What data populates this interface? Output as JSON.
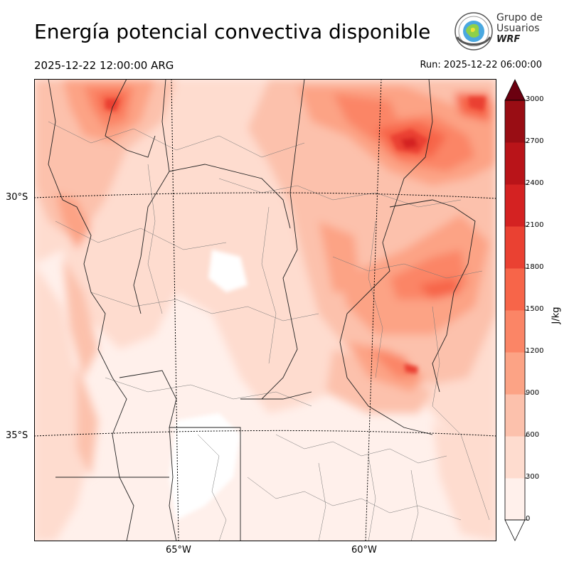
{
  "title": "Energía potencial convectiva disponible",
  "valid_time": "2025-12-22 12:00:00 ARG",
  "run_time": "Run: 2025-12-22 06:00:00",
  "logo": {
    "line1": "Grupo de",
    "line2": "Usuarios",
    "line3": "WRF",
    "icon": "globe-seal-icon"
  },
  "map": {
    "lat_labels": [
      "30°S",
      "35°S"
    ],
    "lon_labels": [
      "65°W",
      "60°W"
    ]
  },
  "colorbar": {
    "unit": "J/kg",
    "ticks": [
      "0",
      "300",
      "600",
      "900",
      "1200",
      "1500",
      "1800",
      "2100",
      "2400",
      "2700",
      "3000"
    ],
    "colors": [
      "#fff0eb",
      "#fedccf",
      "#fcc1ac",
      "#fca385",
      "#fb8566",
      "#f76549",
      "#ea4132",
      "#d42222",
      "#b91419",
      "#990d14",
      "#6b0010"
    ]
  }
}
